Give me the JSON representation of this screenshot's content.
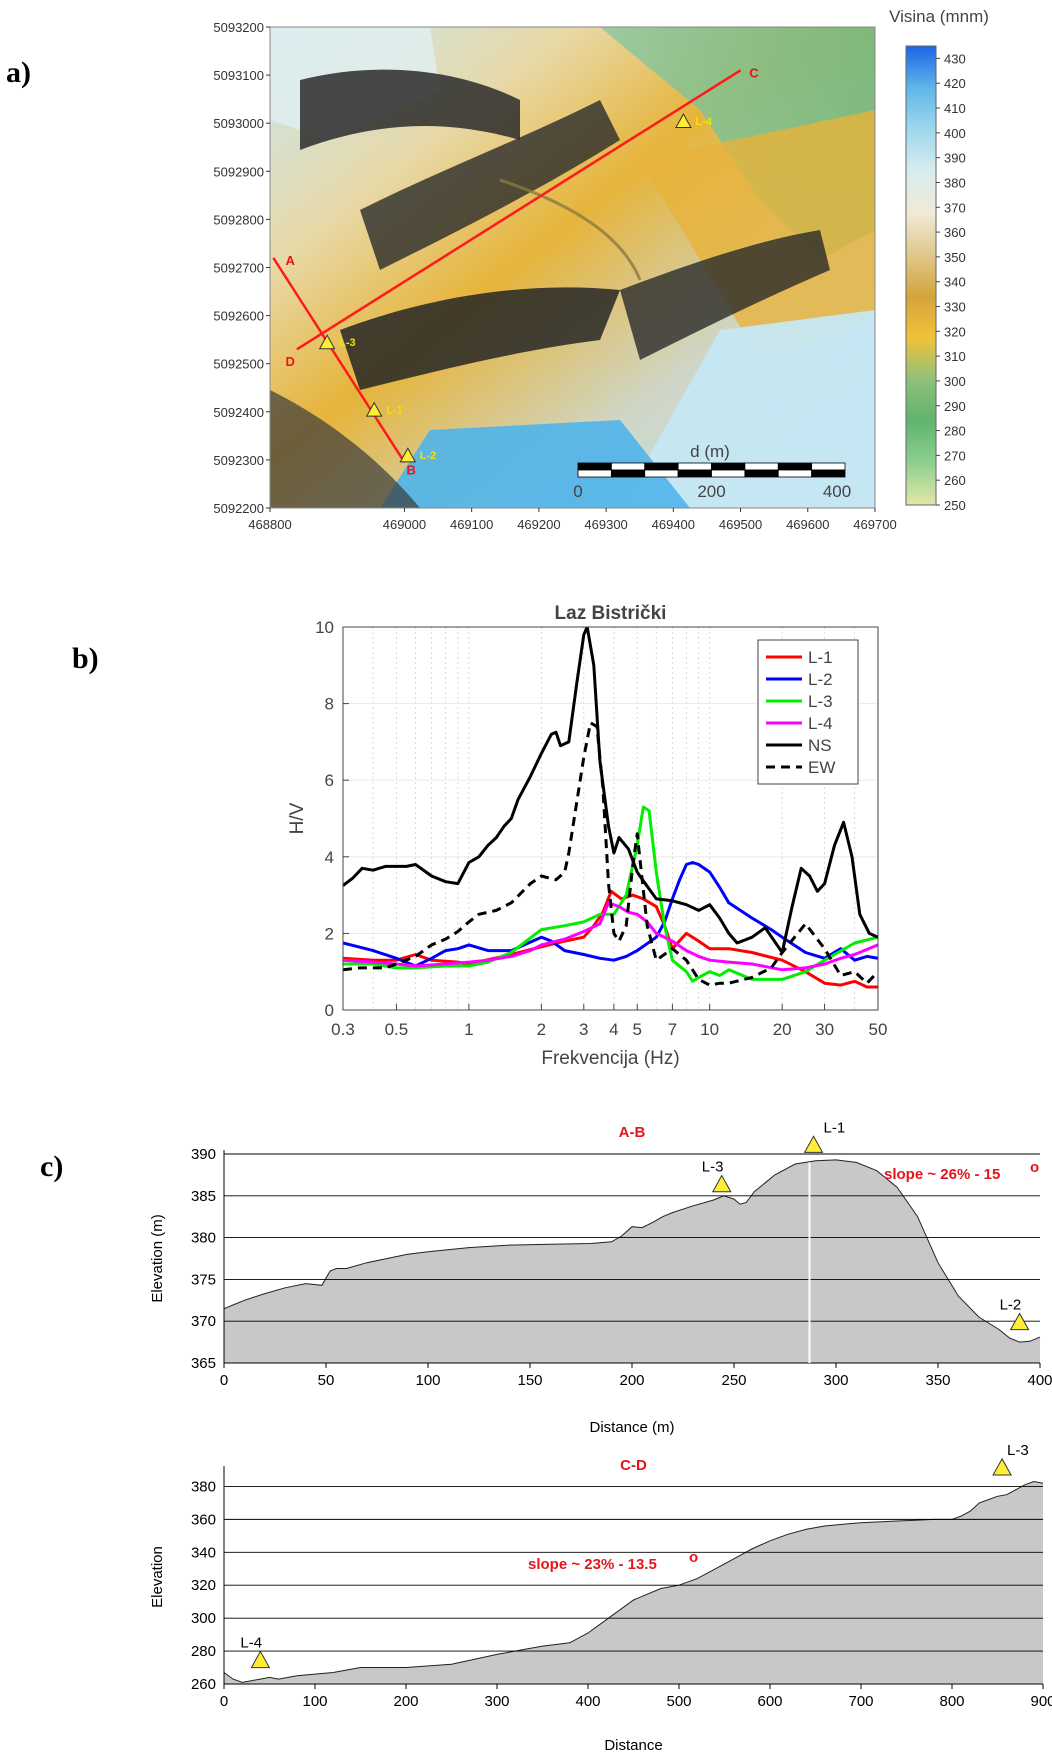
{
  "panels": {
    "a": "a)",
    "b": "b)",
    "c": "c)"
  },
  "map": {
    "x_ticks": [
      "468800",
      "469000",
      "469100",
      "469200",
      "469300",
      "469400",
      "469500",
      "469600",
      "469700"
    ],
    "x_tick_values": [
      468800,
      469000,
      469100,
      469200,
      469300,
      469400,
      469500,
      469600,
      469700
    ],
    "y_ticks": [
      "5093200",
      "5093100",
      "5093000",
      "5092900",
      "5092800",
      "5092700",
      "5092600",
      "5092500",
      "5092400",
      "5092300",
      "5092200"
    ],
    "x_range": [
      468800,
      469700
    ],
    "y_range": [
      5092200,
      5093200
    ],
    "profile_lines": [
      {
        "start": "A",
        "end": "B",
        "from": [
          468805,
          5092720
        ],
        "to": [
          469000,
          5092295
        ]
      },
      {
        "start": "C",
        "end": "D",
        "from": [
          469500,
          5093110
        ],
        "to": [
          468840,
          5092530
        ]
      }
    ],
    "line_labels": [
      {
        "text": "A",
        "x": 468830,
        "y": 5092705
      },
      {
        "text": "B",
        "x": 469010,
        "y": 5092270
      },
      {
        "text": "C",
        "x": 469520,
        "y": 5093095
      },
      {
        "text": "D",
        "x": 468830,
        "y": 5092495
      }
    ],
    "stations": [
      {
        "label": "L-1",
        "x": 468955,
        "y": 5092405
      },
      {
        "label": "L-2",
        "x": 469005,
        "y": 5092310
      },
      {
        "label": "L-3",
        "x": 468885,
        "y": 5092545
      },
      {
        "label": "L-4",
        "x": 469415,
        "y": 5093005
      }
    ],
    "scalebar": {
      "title": "d (m)",
      "labels": [
        "0",
        "200",
        "400"
      ]
    },
    "colorbar": {
      "title": "Visina (mnm)",
      "range": [
        250,
        435
      ],
      "labels": [
        "430",
        "420",
        "410",
        "400",
        "390",
        "380",
        "370",
        "360",
        "350",
        "340",
        "330",
        "320",
        "310",
        "300",
        "290",
        "280",
        "270",
        "260",
        "250"
      ],
      "stops": [
        "#e2e8a8",
        "#8fcf8f",
        "#5fb46f",
        "#8fc07a",
        "#f0c23a",
        "#d4a43c",
        "#e0c88a",
        "#f1ead8",
        "#d8ecef",
        "#9ed8ec",
        "#5fb6e8",
        "#1e64e6"
      ]
    }
  },
  "chart_data": [
    {
      "type": "line",
      "title": "Laz Bistrički",
      "xlabel": "Frekvencija (Hz)",
      "ylabel": "H/V",
      "xscale": "log",
      "xlim": [
        0.3,
        50
      ],
      "ylim": [
        0,
        10
      ],
      "x_ticks": [
        0.3,
        0.5,
        1,
        2,
        3,
        4,
        5,
        7,
        10,
        20,
        30,
        50
      ],
      "x_tick_labels": [
        "0.3",
        "0.5",
        "1",
        "2",
        "3",
        "4",
        "5",
        "7",
        "10",
        "20",
        "30",
        "50"
      ],
      "y_ticks": [
        0,
        2,
        4,
        6,
        8,
        10
      ],
      "y_tick_labels": [
        "0",
        "2",
        "4",
        "6",
        "8",
        "10"
      ],
      "grid": "on",
      "legend": "top-right",
      "series": [
        {
          "name": "L-1",
          "color": "#ff0000",
          "dash": false,
          "x": [
            0.3,
            0.4,
            0.5,
            0.6,
            0.7,
            0.9,
            1.0,
            1.5,
            2.0,
            2.5,
            3.0,
            3.3,
            3.6,
            3.9,
            4.3,
            4.8,
            5.3,
            6.0,
            6.5,
            7.0,
            8.0,
            9.0,
            10,
            12,
            15,
            20,
            25,
            30,
            35,
            40,
            45,
            50
          ],
          "y": [
            1.35,
            1.3,
            1.3,
            1.45,
            1.3,
            1.25,
            1.2,
            1.45,
            1.65,
            1.8,
            1.9,
            2.2,
            2.55,
            3.1,
            2.9,
            3.0,
            2.9,
            2.7,
            2.2,
            1.6,
            2.0,
            1.8,
            1.6,
            1.6,
            1.5,
            1.3,
            1.0,
            0.7,
            0.65,
            0.75,
            0.6,
            0.6
          ]
        },
        {
          "name": "L-2",
          "color": "#0000ff",
          "dash": false,
          "x": [
            0.3,
            0.4,
            0.5,
            0.6,
            0.7,
            0.8,
            0.9,
            1.0,
            1.2,
            1.5,
            2.0,
            2.2,
            2.5,
            3.0,
            3.5,
            4.0,
            4.5,
            5.0,
            6.0,
            6.5,
            7.0,
            7.5,
            8.0,
            8.5,
            9.0,
            10,
            11,
            12,
            15,
            18,
            20,
            25,
            30,
            35,
            40,
            45,
            50
          ],
          "y": [
            1.75,
            1.55,
            1.35,
            1.15,
            1.35,
            1.55,
            1.6,
            1.7,
            1.55,
            1.55,
            1.9,
            1.8,
            1.55,
            1.45,
            1.35,
            1.3,
            1.4,
            1.55,
            1.9,
            2.3,
            2.9,
            3.4,
            3.8,
            3.85,
            3.8,
            3.6,
            3.2,
            2.8,
            2.4,
            2.1,
            1.9,
            1.5,
            1.35,
            1.6,
            1.3,
            1.4,
            1.35
          ]
        },
        {
          "name": "L-3",
          "color": "#00ee00",
          "dash": false,
          "x": [
            0.3,
            0.4,
            0.5,
            0.6,
            0.8,
            1.0,
            1.2,
            1.5,
            2.0,
            2.5,
            3.0,
            3.5,
            4.0,
            4.5,
            5.0,
            5.3,
            5.6,
            6.0,
            6.5,
            7.0,
            8.0,
            8.5,
            9.0,
            10,
            11,
            12,
            15,
            20,
            25,
            30,
            40,
            50
          ],
          "y": [
            1.2,
            1.2,
            1.1,
            1.1,
            1.15,
            1.15,
            1.25,
            1.5,
            2.1,
            2.2,
            2.3,
            2.5,
            2.5,
            3.0,
            4.3,
            5.3,
            5.2,
            3.6,
            2.2,
            1.3,
            1.0,
            0.75,
            0.85,
            1.0,
            0.9,
            1.05,
            0.8,
            0.8,
            1.0,
            1.3,
            1.75,
            1.9
          ]
        },
        {
          "name": "L-4",
          "color": "#ff00ff",
          "dash": false,
          "x": [
            0.3,
            0.4,
            0.5,
            0.6,
            0.8,
            1.0,
            1.2,
            1.5,
            1.8,
            2.0,
            2.5,
            3.0,
            3.5,
            3.8,
            4.2,
            4.6,
            5.0,
            5.5,
            6.0,
            7.0,
            8.0,
            9.0,
            10,
            12,
            15,
            20,
            25,
            30,
            35,
            40,
            50
          ],
          "y": [
            1.3,
            1.25,
            1.2,
            1.15,
            1.2,
            1.25,
            1.3,
            1.4,
            1.55,
            1.7,
            1.85,
            2.05,
            2.25,
            2.8,
            2.7,
            2.55,
            2.5,
            2.3,
            2.0,
            1.8,
            1.55,
            1.4,
            1.3,
            1.25,
            1.2,
            1.05,
            1.1,
            1.2,
            1.35,
            1.45,
            1.7
          ]
        },
        {
          "name": "NS",
          "color": "#000000",
          "dash": false,
          "x": [
            0.3,
            0.33,
            0.36,
            0.4,
            0.45,
            0.5,
            0.55,
            0.6,
            0.7,
            0.8,
            0.9,
            1.0,
            1.1,
            1.2,
            1.3,
            1.4,
            1.5,
            1.6,
            1.8,
            2.0,
            2.2,
            2.3,
            2.4,
            2.6,
            2.8,
            3.0,
            3.1,
            3.3,
            3.5,
            3.8,
            4.0,
            4.2,
            4.6,
            5.0,
            5.4,
            6.0,
            7.0,
            8.0,
            9.0,
            10,
            11,
            12,
            13,
            15,
            17,
            20,
            22,
            24,
            26,
            28,
            30,
            33,
            36,
            39,
            42,
            46,
            50
          ],
          "y": [
            3.25,
            3.45,
            3.7,
            3.65,
            3.75,
            3.75,
            3.75,
            3.8,
            3.5,
            3.35,
            3.3,
            3.85,
            4.0,
            4.3,
            4.5,
            4.8,
            5.0,
            5.5,
            6.1,
            6.7,
            7.2,
            7.25,
            6.9,
            7.0,
            8.5,
            9.8,
            10.0,
            9.0,
            6.5,
            4.8,
            4.1,
            4.5,
            4.2,
            3.6,
            3.3,
            2.9,
            2.85,
            2.75,
            2.6,
            2.75,
            2.4,
            2.0,
            1.75,
            1.9,
            2.15,
            1.5,
            2.7,
            3.7,
            3.5,
            3.1,
            3.3,
            4.3,
            4.9,
            4.0,
            2.5,
            2.0,
            1.9
          ]
        },
        {
          "name": "EW",
          "color": "#000000",
          "dash": true,
          "x": [
            0.3,
            0.35,
            0.4,
            0.45,
            0.5,
            0.6,
            0.7,
            0.8,
            0.9,
            1.0,
            1.1,
            1.3,
            1.5,
            1.8,
            2.0,
            2.3,
            2.5,
            2.6,
            2.8,
            3.0,
            3.2,
            3.4,
            3.6,
            3.8,
            4.0,
            4.2,
            4.5,
            4.8,
            5.0,
            5.5,
            6.0,
            7.0,
            8.0,
            9.0,
            10,
            11,
            12,
            15,
            18,
            20,
            25,
            30,
            35,
            40,
            45,
            50
          ],
          "y": [
            1.05,
            1.1,
            1.1,
            1.1,
            1.2,
            1.4,
            1.7,
            1.85,
            2.05,
            2.3,
            2.5,
            2.6,
            2.8,
            3.3,
            3.5,
            3.4,
            3.6,
            4.1,
            5.4,
            6.6,
            7.5,
            7.4,
            5.8,
            3.3,
            2.0,
            1.8,
            2.2,
            3.8,
            4.6,
            2.2,
            1.3,
            1.6,
            1.3,
            0.8,
            0.65,
            0.7,
            0.7,
            0.85,
            1.1,
            1.5,
            2.25,
            1.6,
            0.9,
            1.0,
            0.7,
            1.0
          ]
        }
      ]
    },
    {
      "type": "area",
      "title": "A-B",
      "xlabel": "Distance (m)",
      "ylabel": "Elevation (m)",
      "xlim": [
        0,
        400
      ],
      "ylim": [
        365,
        390
      ],
      "x_ticks": [
        0,
        50,
        100,
        150,
        200,
        250,
        300,
        350,
        400
      ],
      "y_ticks": [
        365,
        370,
        375,
        380,
        385,
        390
      ],
      "annotation": "slope ~  26% - 15",
      "annotation_sup": "o",
      "stations": [
        {
          "label": "L-3",
          "x": 244,
          "y": 385.5
        },
        {
          "label": "L-1",
          "x": 289,
          "y": 390.2
        },
        {
          "label": "L-2",
          "x": 390,
          "y": 369.0
        }
      ],
      "x": [
        0,
        5,
        10,
        20,
        30,
        40,
        48,
        52,
        55,
        60,
        70,
        80,
        90,
        100,
        120,
        140,
        160,
        180,
        190,
        195,
        200,
        205,
        210,
        215,
        220,
        230,
        240,
        245,
        250,
        253,
        256,
        260,
        265,
        270,
        280,
        290,
        300,
        310,
        320,
        330,
        340,
        350,
        360,
        370,
        380,
        385,
        390,
        395,
        400
      ],
      "y": [
        371.5,
        372,
        372.5,
        373.3,
        374,
        374.5,
        374.3,
        376,
        376.3,
        376.3,
        377,
        377.5,
        378,
        378.3,
        378.8,
        379.1,
        379.2,
        379.3,
        379.5,
        380.2,
        381.3,
        381.2,
        381.8,
        382.5,
        383,
        383.8,
        384.5,
        385,
        384.6,
        384,
        384.2,
        385.5,
        386.5,
        387.5,
        388.8,
        389.2,
        389.3,
        389,
        388,
        386,
        382.5,
        377,
        373,
        370.5,
        369,
        368,
        367.5,
        367.6,
        368.1
      ]
    },
    {
      "type": "area",
      "title": "C-D",
      "xlabel": "Distance",
      "ylabel": "Elevation",
      "xlim": [
        0,
        900
      ],
      "ylim": [
        260,
        390
      ],
      "x_ticks": [
        0,
        100,
        200,
        300,
        400,
        500,
        600,
        700,
        800,
        900
      ],
      "y_ticks": [
        260,
        280,
        300,
        320,
        340,
        360,
        380
      ],
      "annotation": "slope ~  23% - 13.5",
      "annotation_sup": "o",
      "stations": [
        {
          "label": "L-4",
          "x": 40,
          "y": 270
        },
        {
          "label": "L-3",
          "x": 855,
          "y": 387
        }
      ],
      "x": [
        0,
        10,
        20,
        30,
        40,
        50,
        60,
        80,
        100,
        120,
        150,
        200,
        250,
        300,
        330,
        350,
        380,
        400,
        420,
        450,
        480,
        500,
        520,
        540,
        560,
        580,
        600,
        620,
        640,
        660,
        680,
        700,
        720,
        740,
        760,
        780,
        800,
        810,
        820,
        830,
        840,
        850,
        860,
        870,
        880,
        890,
        900
      ],
      "y": [
        267,
        263,
        261,
        262,
        263,
        264,
        263,
        265,
        266,
        267,
        270,
        270,
        272,
        278,
        281,
        283,
        285,
        291,
        299,
        311,
        318,
        320,
        324,
        330,
        336,
        342,
        347,
        351,
        354,
        356,
        357,
        358,
        358.5,
        359,
        359.5,
        360,
        360,
        362,
        365,
        370,
        372,
        374,
        375,
        378,
        381,
        383,
        382
      ]
    }
  ]
}
